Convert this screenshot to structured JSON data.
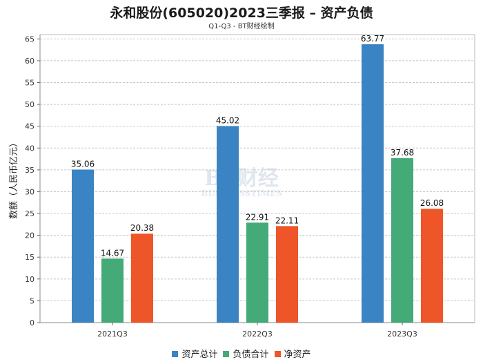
{
  "title": "永和股份(605020)2023三季报 – 资产负债",
  "subtitle": "Q1-Q3 - BT财经绘制",
  "watermark": "BT财经 BUSINESSTIMES",
  "chart_data": {
    "type": "bar",
    "title": "永和股份(605020)2023三季报 – 资产负债",
    "subtitle": "Q1-Q3 - BT财经绘制",
    "xlabel": "",
    "ylabel": "数额（人民币亿元）",
    "ylim": [
      0,
      66
    ],
    "yticks": [
      0,
      5,
      10,
      15,
      20,
      25,
      30,
      35,
      40,
      45,
      50,
      55,
      60,
      65
    ],
    "grid": true,
    "legend_position": "bottom",
    "categories": [
      "2021Q3",
      "2022Q3",
      "2023Q3"
    ],
    "series": [
      {
        "name": "资产总计",
        "color": "#3a84c3",
        "values": [
          35.06,
          45.02,
          63.77
        ]
      },
      {
        "name": "负债合计",
        "color": "#44aa77",
        "values": [
          14.67,
          22.91,
          37.68
        ]
      },
      {
        "name": "净资产",
        "color": "#ee5528",
        "values": [
          20.38,
          22.11,
          26.08
        ]
      }
    ]
  }
}
